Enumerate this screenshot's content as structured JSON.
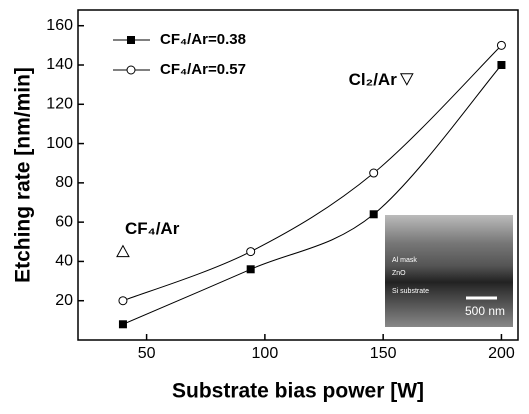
{
  "chart_data": {
    "type": "line",
    "x_label": "Substrate bias power [W]",
    "y_label": "Etching rate [nm/min]",
    "xlim": [
      21,
      207
    ],
    "xticks": [
      50,
      100,
      150,
      200
    ],
    "ylim": [
      0,
      168
    ],
    "yticks": [
      20,
      40,
      60,
      80,
      100,
      120,
      140,
      160
    ],
    "series": [
      {
        "name": "CF₄/Ar=0.38",
        "color": "#000000",
        "marker": "square",
        "x": [
          40,
          94,
          146,
          200
        ],
        "values": [
          8,
          36,
          64,
          140
        ]
      },
      {
        "name": "CF₄/Ar=0.57",
        "color": "#000000",
        "marker": "circle",
        "x": [
          40,
          94,
          146,
          200
        ],
        "values": [
          20,
          45,
          85,
          150
        ]
      }
    ],
    "annotations": [
      {
        "text": "CF₄/Ar",
        "marker": "triangle-up",
        "x": 40,
        "y": 45
      },
      {
        "text": "Cl₂/Ar",
        "marker": "triangle-down",
        "x": 160,
        "y": 133
      }
    ],
    "inset": {
      "labels": [
        "Al mask",
        "ZnO",
        "Si substrate"
      ],
      "scale_bar": "500 nm"
    }
  }
}
